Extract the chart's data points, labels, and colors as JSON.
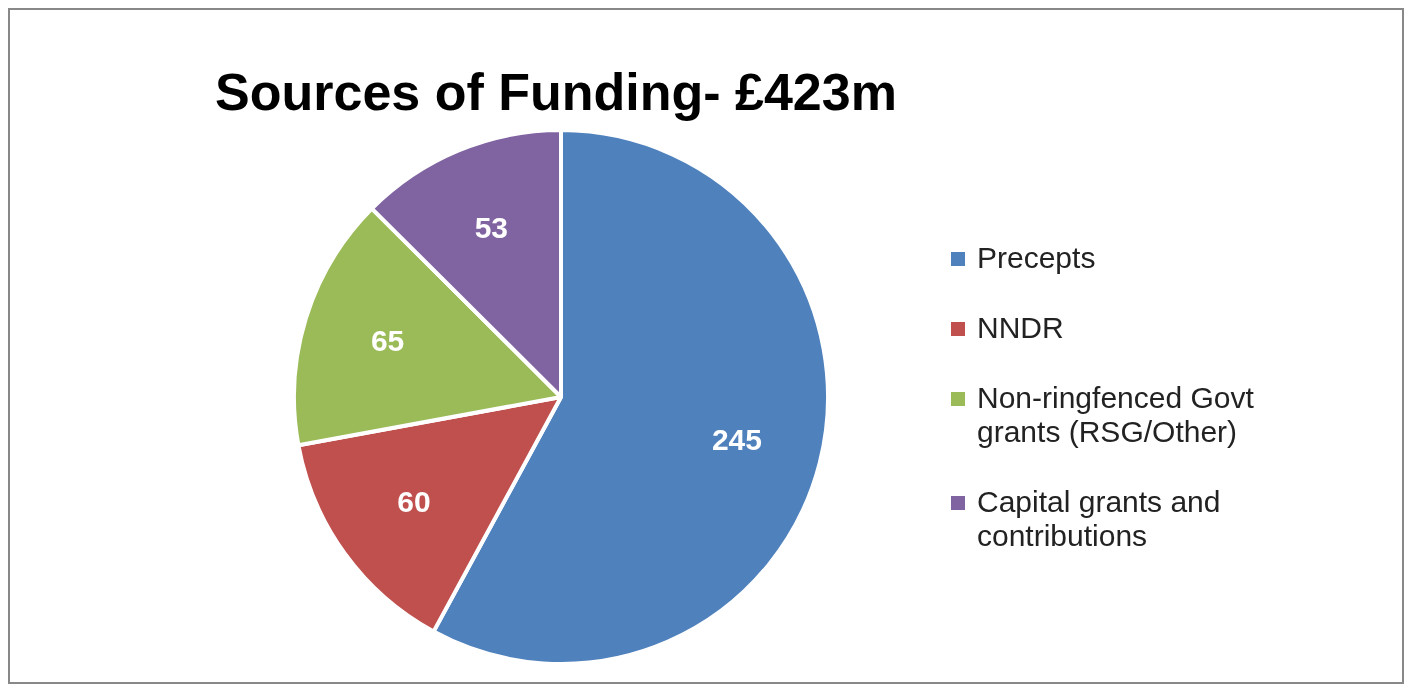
{
  "chart_data": {
    "type": "pie",
    "title": "Sources of Funding- £423m",
    "categories": [
      "Precepts",
      "NNDR",
      "Non-ringfenced Govt grants (RSG/Other)",
      "Capital grants and contributions"
    ],
    "values": [
      245,
      60,
      65,
      53
    ],
    "colors": [
      "#4f81bd",
      "#c0504d",
      "#9bbb59",
      "#8064a2"
    ],
    "data_labels": true,
    "legend": "right"
  }
}
